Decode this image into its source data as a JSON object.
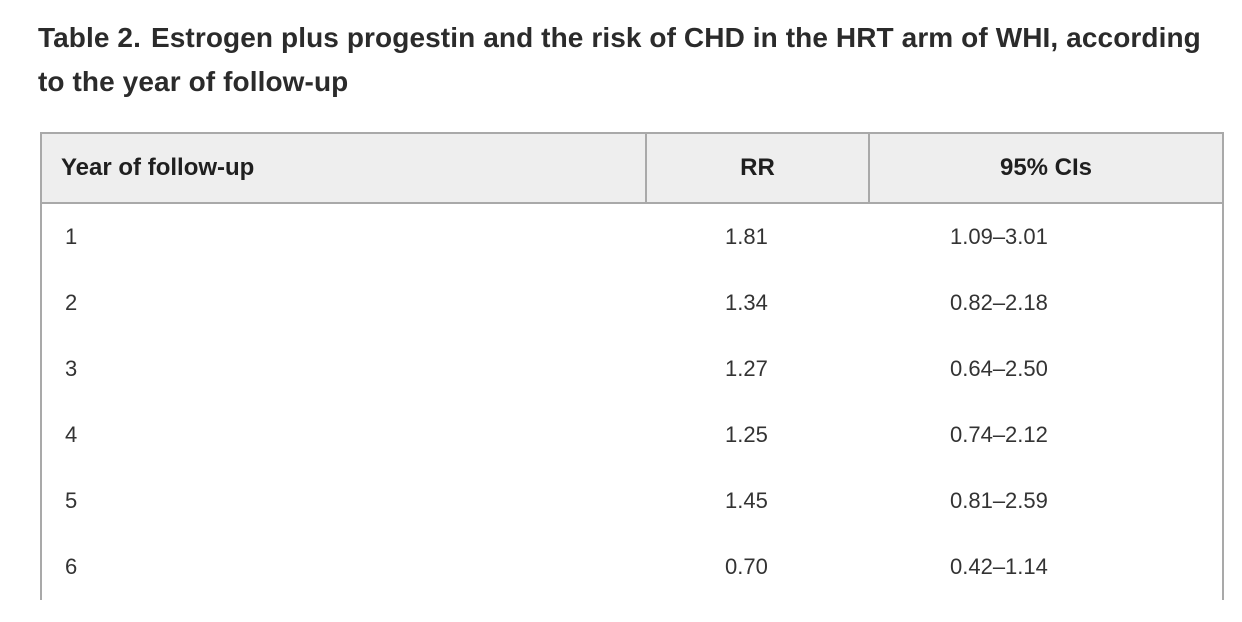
{
  "caption": {
    "label": "Table 2.",
    "full_text": "Estrogen plus progestin and the risk of CHD in the HRT arm of WHI, according to the year of follow-up",
    "line1": "Estrogen plus progestin and the risk of CHD in the HRT arm of WHI, according",
    "line2": "to the year of follow-up"
  },
  "table": {
    "headers": [
      "Year of follow-up",
      "RR",
      "95% CIs"
    ],
    "rows": [
      {
        "year": "1",
        "rr": "1.81",
        "ci": "1.09–3.01"
      },
      {
        "year": "2",
        "rr": "1.34",
        "ci": "0.82–2.18"
      },
      {
        "year": "3",
        "rr": "1.27",
        "ci": "0.64–2.50"
      },
      {
        "year": "4",
        "rr": "1.25",
        "ci": "0.74–2.12"
      },
      {
        "year": "5",
        "rr": "1.45",
        "ci": "0.81–2.59"
      },
      {
        "year": "6",
        "rr": "0.70",
        "ci": "0.42–1.14"
      }
    ]
  },
  "colors": {
    "header_background": "#eeeeee",
    "table_border": "#a9a9a9",
    "caption_text": "#2b2b2b",
    "body_text": "#333333",
    "page_background": "#ffffff"
  }
}
